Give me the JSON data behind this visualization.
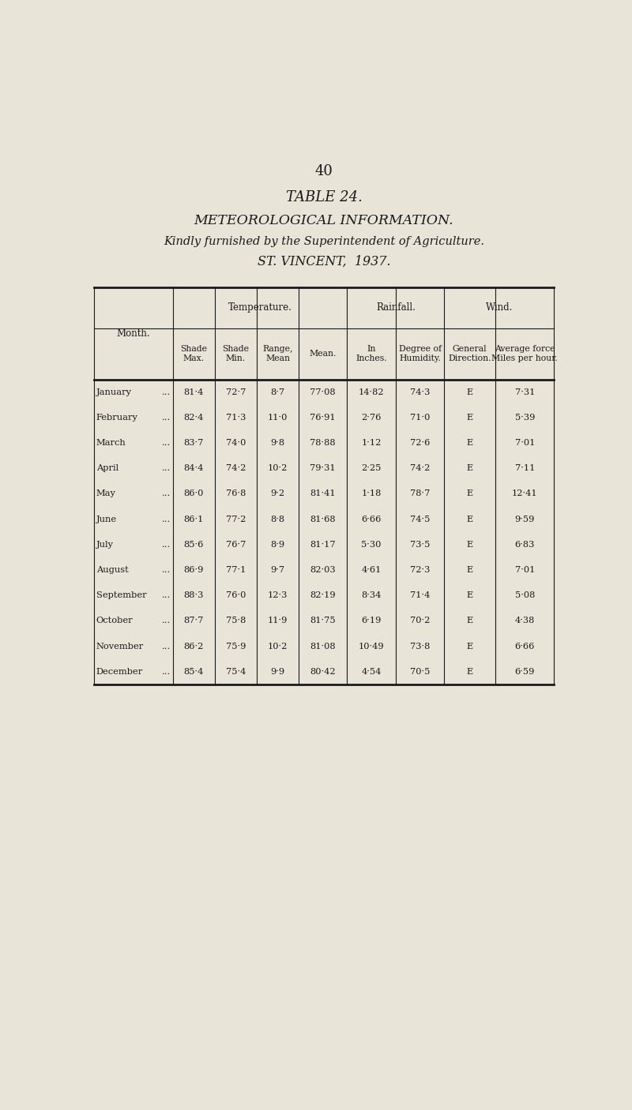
{
  "page_number": "40",
  "title1": "TABLE 24.",
  "title2": "METEOROLOGICAL INFORMATION.",
  "title3": "Kindly furnished by the Superintendent of Agriculture.",
  "title4": "ST. VINCENT,  1937.",
  "months": [
    "January",
    "February",
    "March",
    "April",
    "May",
    "June",
    "July",
    "August",
    "September",
    "October",
    "November",
    "December"
  ],
  "data": [
    [
      "81·4",
      "72·7",
      "8·7",
      "77·08",
      "14·82",
      "74·3",
      "E",
      "7·31"
    ],
    [
      "82·4",
      "71·3",
      "11·0",
      "76·91",
      "2·76",
      "71·0",
      "E",
      "5·39"
    ],
    [
      "83·7",
      "74·0",
      "9·8",
      "78·88",
      "1·12",
      "72·6",
      "E",
      "7·01"
    ],
    [
      "84·4",
      "74·2",
      "10·2",
      "79·31",
      "2·25",
      "74·2",
      "E",
      "7·11"
    ],
    [
      "86·0",
      "76·8",
      "9·2",
      "81·41",
      "1·18",
      "78·7",
      "E",
      "12·41"
    ],
    [
      "86·1",
      "77·2",
      "8·8",
      "81·68",
      "6·66",
      "74·5",
      "E",
      "9·59"
    ],
    [
      "85·6",
      "76·7",
      "8·9",
      "81·17",
      "5·30",
      "73·5",
      "E",
      "6·83"
    ],
    [
      "86·9",
      "77·1",
      "9·7",
      "82·03",
      "4·61",
      "72·3",
      "E",
      "7·01"
    ],
    [
      "88·3",
      "76·0",
      "12·3",
      "82·19",
      "8·34",
      "71·4",
      "E",
      "5·08"
    ],
    [
      "87·7",
      "75·8",
      "11·9",
      "81·75",
      "6·19",
      "70·2",
      "E",
      "4·38"
    ],
    [
      "86·2",
      "75·9",
      "10·2",
      "81·08",
      "10·49",
      "73·8",
      "E",
      "6·66"
    ],
    [
      "85·4",
      "75·4",
      "9·9",
      "80·42",
      "4·54",
      "70·5",
      "E",
      "6·59"
    ]
  ],
  "bg_color": "#e8e4d8",
  "text_color": "#1a1a1a",
  "line_color": "#1a1a1a"
}
